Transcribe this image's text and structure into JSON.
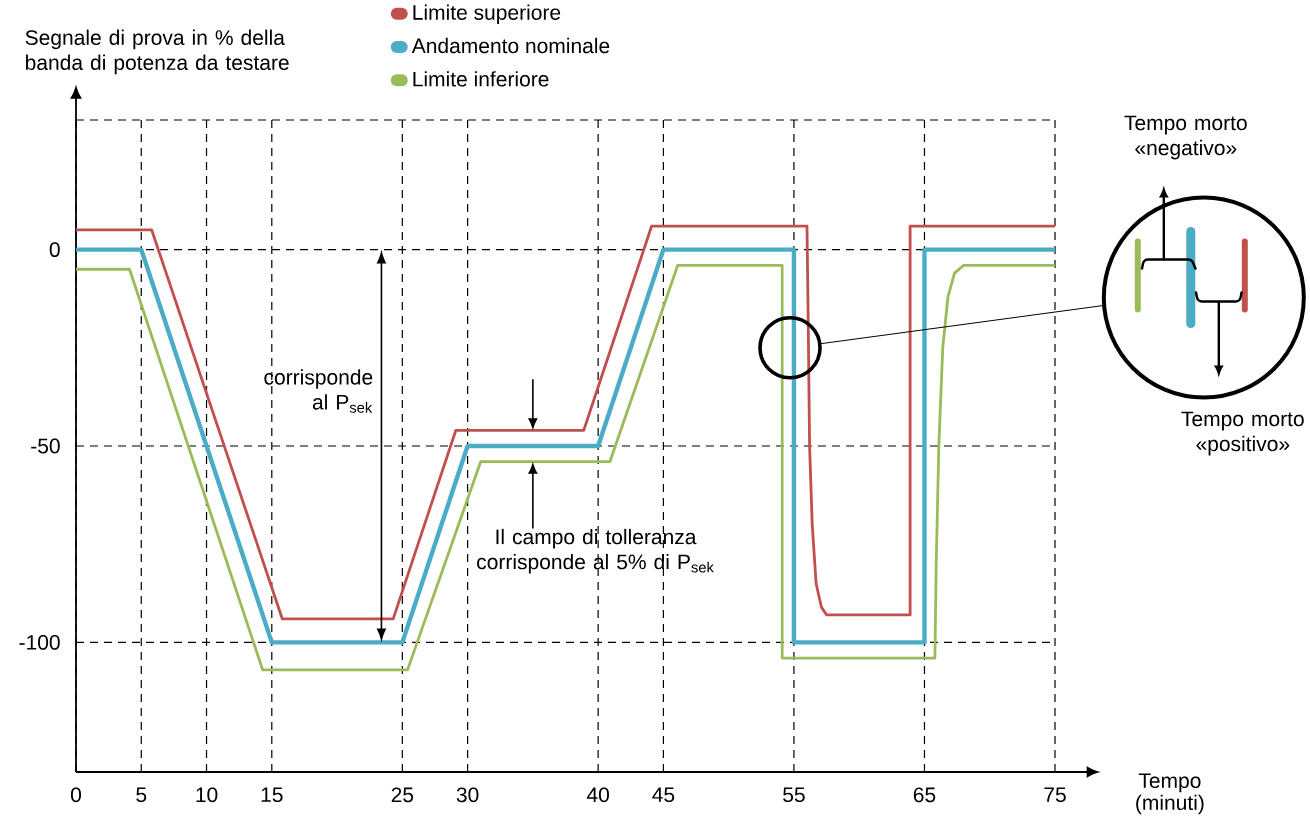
{
  "chart_data": {
    "type": "line",
    "ylabel": "Segnale di prova in % della banda di potenza da testare",
    "xlabel": "Tempo (minuti)",
    "xlim": [
      0,
      75
    ],
    "xticks": [
      0,
      5,
      10,
      15,
      25,
      30,
      40,
      45,
      55,
      65,
      75
    ],
    "ylim": [
      -133,
      33
    ],
    "yticks": [
      -100,
      -50,
      0,
      {
        "value": 33,
        "label": null
      }
    ],
    "grid": true,
    "legend": "top",
    "marker": "none",
    "line_style": "solid",
    "series": [
      {
        "name": "Limite superiore",
        "color": "#c0504d",
        "x": [
          0,
          5.8,
          15.8,
          24.3,
          29.1,
          38.9,
          44.1,
          56,
          56.1,
          56.2,
          56.4,
          56.7,
          57.1,
          57.5,
          63.9,
          63.9,
          75
        ],
        "values": [
          5,
          5,
          -94,
          -94,
          -46,
          -46,
          6,
          6,
          -20,
          -50,
          -70,
          -85,
          -91,
          -93,
          -93,
          6,
          6
        ]
      },
      {
        "name": "Andamento nominale",
        "color": "#4bacc6",
        "x": [
          0,
          5,
          15,
          25,
          30,
          40,
          45,
          55,
          55,
          65,
          65,
          75
        ],
        "values": [
          0,
          0,
          -100,
          -100,
          -50,
          -50,
          0,
          0,
          -100,
          -100,
          0,
          0
        ]
      },
      {
        "name": "Limite inferiore",
        "color": "#9bbb59",
        "x": [
          0,
          4.1,
          14.3,
          25.4,
          31,
          40.9,
          46.1,
          54.1,
          54.1,
          65.8,
          65.9,
          66.1,
          66.4,
          66.8,
          67.3,
          68,
          75
        ],
        "values": [
          -5,
          -5,
          -107,
          -107,
          -54,
          -54,
          -4,
          -4,
          -104,
          -104,
          -80,
          -50,
          -25,
          -12,
          -6,
          -4,
          -4
        ]
      }
    ],
    "annotations": [
      "corrisponde al P$_{sek}$",
      "Il campo di tolleranza corrisponde al 5% di P$_{sek}$",
      "Tempo morto «negativo»",
      "Tempo morto «positivo»"
    ]
  }
}
